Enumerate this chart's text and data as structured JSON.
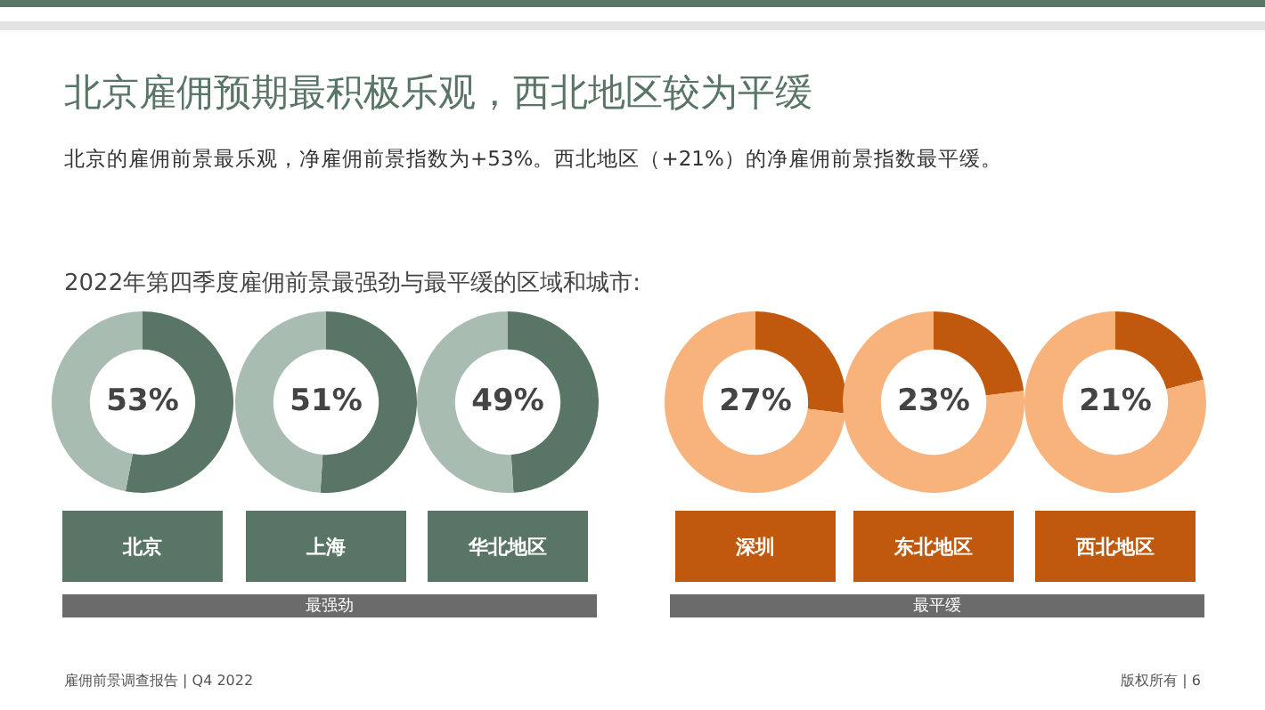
{
  "chart_data": [
    {
      "type": "donut",
      "title": "北京",
      "subtitle": "北京的雇佣前景最乐观，净雇佣前景指数为+53%。西北地区（+21%）的净雇佣前景指数最平缓。",
      "categories": [
        null,
        null
      ],
      "values": [
        53,
        47
      ],
      "colors": [
        "#587565",
        "#a9bcb2"
      ],
      "value_labels": [
        "53%",
        null
      ],
      "annotations": [
        "北京雇佣预期最积极乐观，西北地区较为平缓",
        "2022年第四季度雇佣前景最强劲与最平缓的区域和城市:",
        "最强劲",
        "雇佣前景调查报告 | Q4 2022"
      ]
    },
    {
      "type": "donut",
      "title": "上海",
      "categories": [
        null,
        null
      ],
      "values": [
        51,
        49
      ],
      "colors": [
        "#587565",
        "#a9bcb2"
      ],
      "value_labels": [
        "51%",
        null
      ]
    },
    {
      "type": "donut",
      "title": "华北地区",
      "categories": [
        null,
        null
      ],
      "values": [
        49,
        51
      ],
      "colors": [
        "#587565",
        "#a9bcb2"
      ],
      "value_labels": [
        "49%",
        null
      ]
    },
    {
      "type": "donut",
      "title": "深圳",
      "categories": [
        null,
        null
      ],
      "values": [
        27,
        73
      ],
      "colors": [
        "#c0580e",
        "#f8b37c"
      ],
      "value_labels": [
        "27%",
        null
      ],
      "annotations": [
        "最平缓"
      ]
    },
    {
      "type": "donut",
      "title": "东北地区",
      "categories": [
        null,
        null
      ],
      "values": [
        23,
        77
      ],
      "colors": [
        "#c0580e",
        "#f8b37c"
      ],
      "value_labels": [
        "23%",
        null
      ]
    },
    {
      "type": "donut",
      "title": "西北地区",
      "categories": [
        null,
        null
      ],
      "values": [
        21,
        79
      ],
      "colors": [
        "#c0580e",
        "#f8b37c"
      ],
      "value_labels": [
        "21%",
        null
      ],
      "annotations": [
        "版权所有 | 6"
      ]
    }
  ]
}
